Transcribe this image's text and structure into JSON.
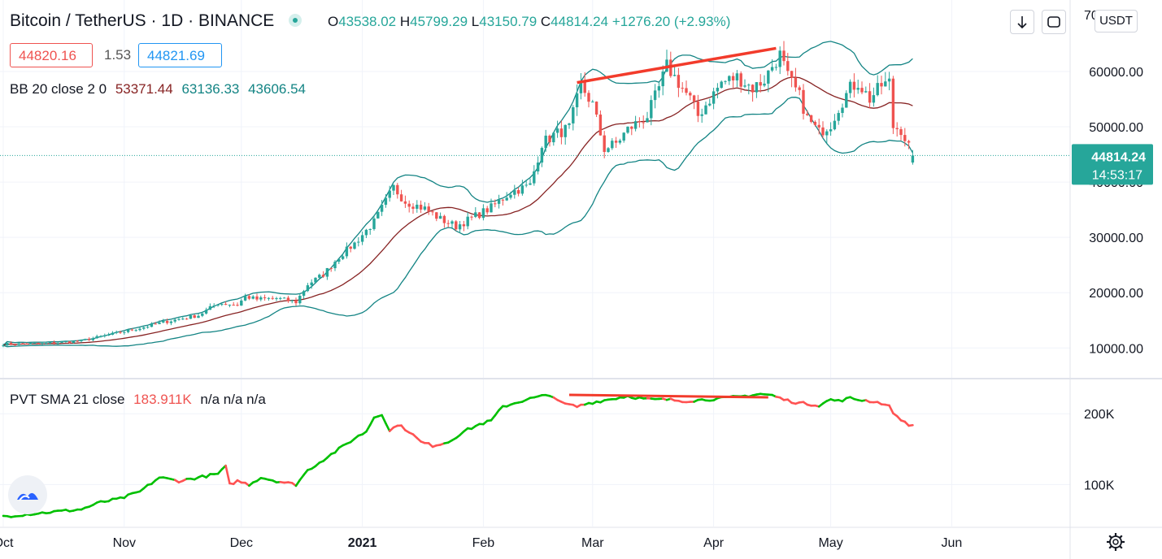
{
  "header": {
    "symbol": "Bitcoin / TetherUS",
    "sep1": "·",
    "interval": "1D",
    "sep2": "·",
    "exchange": "BINANCE",
    "ohlc": {
      "o_label": "O",
      "o": "43538.02",
      "h_label": "H",
      "h": "45799.29",
      "l_label": "L",
      "l": "43150.79",
      "c_label": "C",
      "c": "44814.24",
      "change": "+1276.20 (+2.93%)"
    }
  },
  "trade": {
    "sell": "44820.16",
    "spread": "1.53",
    "buy": "44821.69"
  },
  "bb_legend": {
    "name": "BB 20 close 2 0",
    "basis": "53371.44",
    "upper": "63136.33",
    "lower": "43606.54"
  },
  "pvt_legend": {
    "name": "PVT SMA 21 close",
    "value": "183.911K",
    "na1": "n/a",
    "na2": "n/a",
    "na3": "n/a"
  },
  "price_scale": {
    "currency": "USDT",
    "top_partial": "70",
    "last_price": "44814.24",
    "countdown": "14:53:17"
  },
  "colors": {
    "up": "#26a69a",
    "down": "#ef5350",
    "bb_basis": "#872323",
    "bb_band": "#138484",
    "pvt_up": "#00c000",
    "pvt_down": "#ff5252",
    "trendline": "#f23b2b",
    "grid": "#f0f3fa"
  },
  "icons": {
    "arrow": "down-arrow-icon",
    "fullscreen": "fullscreen-icon",
    "settings": "gear-icon",
    "logo": "tradingview-logo-icon"
  },
  "chart_data": [
    {
      "type": "candlestick",
      "title": "Bitcoin / TetherUS · 1D · BINANCE",
      "ylim": [
        0,
        70000
      ],
      "y_ticks": [
        "10000.00",
        "20000.00",
        "30000.00",
        "40000.00",
        "50000.00",
        "60000.00"
      ],
      "x_labels": [
        "Oct",
        "Nov",
        "Dec",
        "2021",
        "Feb",
        "Mar",
        "Apr",
        "May",
        "Jun"
      ],
      "close_anchors": [
        [
          0,
          10700
        ],
        [
          10,
          10800
        ],
        [
          20,
          11300
        ],
        [
          28,
          12500
        ],
        [
          35,
          13600
        ],
        [
          42,
          14800
        ],
        [
          50,
          15900
        ],
        [
          55,
          18100
        ],
        [
          60,
          17800
        ],
        [
          62,
          19300
        ],
        [
          65,
          18800
        ],
        [
          70,
          19000
        ],
        [
          75,
          18300
        ],
        [
          78,
          21500
        ],
        [
          82,
          23300
        ],
        [
          86,
          26500
        ],
        [
          90,
          28900
        ],
        [
          95,
          32800
        ],
        [
          100,
          39000
        ],
        [
          103,
          36500
        ],
        [
          108,
          35200
        ],
        [
          112,
          33300
        ],
        [
          116,
          32000
        ],
        [
          120,
          33500
        ],
        [
          125,
          35400
        ],
        [
          130,
          38200
        ],
        [
          135,
          39400
        ],
        [
          138,
          47000
        ],
        [
          141,
          48500
        ],
        [
          145,
          49800
        ],
        [
          148,
          57500
        ],
        [
          151,
          54000
        ],
        [
          154,
          46000
        ],
        [
          157,
          47000
        ],
        [
          160,
          49500
        ],
        [
          163,
          51000
        ],
        [
          165,
          52000
        ],
        [
          168,
          57000
        ],
        [
          170,
          61000
        ],
        [
          173,
          58000
        ],
        [
          176,
          55000
        ],
        [
          178,
          52000
        ],
        [
          181,
          55000
        ],
        [
          184,
          58000
        ],
        [
          188,
          59000
        ],
        [
          192,
          57000
        ],
        [
          195,
          58500
        ],
        [
          197,
          61000
        ],
        [
          199,
          63000
        ],
        [
          201,
          59000
        ],
        [
          204,
          55500
        ],
        [
          206,
          51500
        ],
        [
          209,
          49000
        ],
        [
          212,
          50500
        ],
        [
          214,
          53500
        ],
        [
          217,
          57000
        ],
        [
          219,
          58000
        ],
        [
          222,
          55000
        ],
        [
          225,
          57500
        ],
        [
          227,
          58000
        ],
        [
          228,
          50000
        ],
        [
          230,
          49500
        ],
        [
          232,
          46500
        ],
        [
          233,
          44814
        ]
      ],
      "bollinger": {
        "period": 20,
        "std": 2,
        "basis_last": 53371.44,
        "upper_last": 63136.33,
        "lower_last": 43606.54
      },
      "last_price": 44814.24,
      "trendline": [
        [
          "2021-02-21",
          58000
        ],
        [
          "2021-04-14",
          64000
        ]
      ]
    },
    {
      "type": "line",
      "title": "PVT",
      "y_ticks": [
        "100K",
        "200K"
      ],
      "anchors": [
        [
          0,
          55
        ],
        [
          10,
          60
        ],
        [
          20,
          65
        ],
        [
          25,
          75
        ],
        [
          30,
          80
        ],
        [
          35,
          90
        ],
        [
          40,
          110
        ],
        [
          45,
          105
        ],
        [
          50,
          110
        ],
        [
          55,
          115
        ],
        [
          57,
          125
        ],
        [
          58,
          100
        ],
        [
          60,
          105
        ],
        [
          63,
          100
        ],
        [
          66,
          110
        ],
        [
          70,
          105
        ],
        [
          75,
          100
        ],
        [
          78,
          120
        ],
        [
          82,
          135
        ],
        [
          86,
          150
        ],
        [
          90,
          165
        ],
        [
          93,
          175
        ],
        [
          95,
          195
        ],
        [
          97,
          200
        ],
        [
          99,
          175
        ],
        [
          101,
          185
        ],
        [
          104,
          175
        ],
        [
          107,
          160
        ],
        [
          110,
          155
        ],
        [
          114,
          160
        ],
        [
          118,
          175
        ],
        [
          122,
          185
        ],
        [
          125,
          190
        ],
        [
          128,
          210
        ],
        [
          131,
          215
        ],
        [
          134,
          220
        ],
        [
          138,
          225
        ],
        [
          141,
          225
        ],
        [
          143,
          215
        ],
        [
          147,
          210
        ],
        [
          150,
          215
        ],
        [
          155,
          220
        ],
        [
          160,
          225
        ],
        [
          163,
          222
        ],
        [
          166,
          220
        ],
        [
          170,
          220
        ],
        [
          175,
          218
        ],
        [
          180,
          220
        ],
        [
          185,
          222
        ],
        [
          190,
          225
        ],
        [
          194,
          228
        ],
        [
          197,
          226
        ],
        [
          200,
          220
        ],
        [
          203,
          216
        ],
        [
          206,
          214
        ],
        [
          209,
          212
        ],
        [
          212,
          220
        ],
        [
          214,
          218
        ],
        [
          217,
          222
        ],
        [
          219,
          220
        ],
        [
          222,
          218
        ],
        [
          225,
          215
        ],
        [
          227,
          210
        ],
        [
          229,
          195
        ],
        [
          232,
          185
        ],
        [
          233,
          183.9
        ]
      ],
      "last_value": "183.911K",
      "trendline": [
        [
          138,
          228
        ],
        [
          194,
          222
        ]
      ]
    }
  ]
}
